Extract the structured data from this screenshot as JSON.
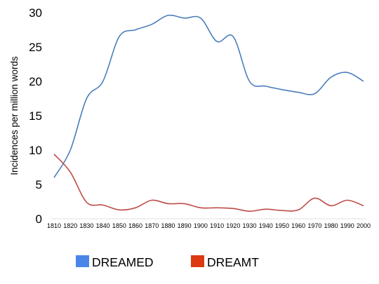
{
  "chart_data": {
    "type": "line",
    "title": "",
    "xlabel": "",
    "ylabel": "Incidences per million words",
    "x": [
      1810,
      1820,
      1830,
      1840,
      1850,
      1860,
      1870,
      1880,
      1890,
      1900,
      1910,
      1920,
      1930,
      1940,
      1950,
      1960,
      1970,
      1980,
      1990,
      2000
    ],
    "x_tick_labels": [
      "1810",
      "1820",
      "1830",
      "1840",
      "1850",
      "1860",
      "1870",
      "1880",
      "1890",
      "1900",
      "1910",
      "1920",
      "1930",
      "1940",
      "1950",
      "1960",
      "1970",
      "1980",
      "1990",
      "2000"
    ],
    "y_ticks": [
      "0",
      "5",
      "10",
      "15",
      "20",
      "25",
      "30"
    ],
    "ylim": [
      0,
      30
    ],
    "grid": false,
    "legend_position": "bottom",
    "series": [
      {
        "name": "DREAMED",
        "color": "#4a7ebb",
        "legend_color": "#4a86e8",
        "values": [
          6.0,
          10.0,
          17.5,
          20.0,
          26.5,
          27.5,
          28.3,
          29.6,
          29.2,
          29.2,
          25.8,
          26.5,
          20.0,
          19.3,
          18.8,
          18.4,
          18.2,
          20.6,
          21.3,
          20.0
        ]
      },
      {
        "name": "DREAMT",
        "color": "#be4b48",
        "legend_color": "#dc3912",
        "values": [
          9.4,
          6.8,
          2.4,
          2.0,
          1.3,
          1.6,
          2.7,
          2.2,
          2.2,
          1.6,
          1.6,
          1.5,
          1.1,
          1.4,
          1.2,
          1.3,
          3.0,
          1.9,
          2.7,
          1.9
        ]
      }
    ]
  }
}
